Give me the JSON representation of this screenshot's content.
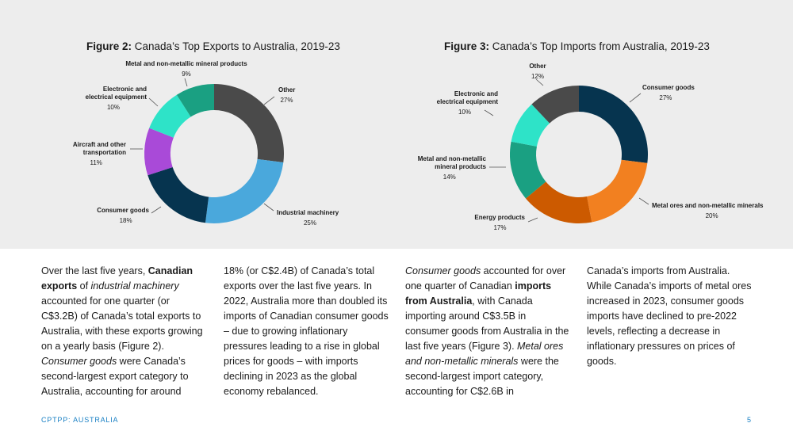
{
  "figures": {
    "exports": {
      "label": "Figure 2:",
      "title": " Canada’s Top Exports to Australia, 2019-23"
    },
    "imports": {
      "label": "Figure 3:",
      "title": " Canada’s Top Imports from Australia, 2019-23"
    }
  },
  "colors": {
    "dark_grey": "#4a4a4a",
    "light_blue": "#4aa8dc",
    "navy": "#06344f",
    "purple": "#a94ad8",
    "cyan": "#2ee3c8",
    "teal": "#1aa082",
    "orange": "#f28020",
    "dark_orange": "#cc5a00",
    "band": "#ededed",
    "footer": "#1a80c4"
  },
  "chart_data": [
    {
      "type": "pie",
      "donut": true,
      "title": "Canada’s Top Exports to Australia, 2019-23",
      "categories": [
        "Other",
        "Industrial machinery",
        "Consumer goods",
        "Aircraft and other transportation",
        "Electronic and electrical equipment",
        "Metal and non-metallic mineral products"
      ],
      "values": [
        27,
        25,
        18,
        11,
        10,
        9
      ],
      "value_labels": [
        "27%",
        "25%",
        "18%",
        "11%",
        "10%",
        "9%"
      ],
      "label_lines": [
        [
          "Other"
        ],
        [
          "Industrial machinery"
        ],
        [
          "Consumer goods"
        ],
        [
          "Aircraft and other",
          "transportation"
        ],
        [
          "Electronic and",
          "electrical equipment"
        ],
        [
          "Metal and non-metallic mineral products"
        ]
      ],
      "colors": [
        "#4a4a4a",
        "#4aa8dc",
        "#06344f",
        "#a94ad8",
        "#2ee3c8",
        "#1aa082"
      ],
      "unit": "%"
    },
    {
      "type": "pie",
      "donut": true,
      "title": "Canada’s Top Imports from Australia, 2019-23",
      "categories": [
        "Consumer goods",
        "Metal ores and non-metallic minerals",
        "Energy products",
        "Metal and non-metallic mineral products",
        "Electronic and electrical equipment",
        "Other"
      ],
      "values": [
        27,
        20,
        17,
        14,
        10,
        12
      ],
      "value_labels": [
        "27%",
        "20%",
        "17%",
        "14%",
        "10%",
        "12%"
      ],
      "label_lines": [
        [
          "Consumer goods"
        ],
        [
          "Metal ores and non-metallic minerals"
        ],
        [
          "Energy products"
        ],
        [
          "Metal and non-metallic",
          "mineral products"
        ],
        [
          "Electronic and",
          "electrical equipment"
        ],
        [
          "Other"
        ]
      ],
      "colors": [
        "#06344f",
        "#f28020",
        "#cc5a00",
        "#1aa082",
        "#2ee3c8",
        "#4a4a4a"
      ],
      "unit": "%"
    }
  ],
  "columns": [
    [
      {
        "t": "Over the last five years, "
      },
      {
        "t": "Canadian exports",
        "s": "b"
      },
      {
        "t": " of "
      },
      {
        "t": "industrial machinery",
        "s": "i"
      },
      {
        "t": " accounted for one quarter (or C$3.2B) of Canada’s total exports to Australia, with these exports growing on a yearly basis (Figure 2). "
      },
      {
        "t": "Consumer goods",
        "s": "i"
      },
      {
        "t": " were Canada’s second-largest export category to Australia, accounting for around"
      }
    ],
    [
      {
        "t": "18% (or C$2.4B) of Canada’s total exports over the last five years. In 2022, Australia more than doubled its imports of Canadian consumer goods – due to growing inflationary pressures leading to a rise in global prices for goods – with imports declining in 2023 as the global economy rebalanced."
      }
    ],
    [
      {
        "t": "Consumer goods",
        "s": "i"
      },
      {
        "t": " accounted for over one quarter of Canadian "
      },
      {
        "t": "imports from Australia",
        "s": "b"
      },
      {
        "t": ", with Canada importing around C$3.5B in consumer goods from Australia in the last five years (Figure 3). "
      },
      {
        "t": "Metal ores and non-metallic minerals",
        "s": "i"
      },
      {
        "t": " were the second-largest import category, accounting for C$2.6B in"
      }
    ],
    [
      {
        "t": "Canada’s imports from Australia. While Canada’s imports of metal ores increased in 2023, consumer goods imports have declined to pre-2022 levels, reflecting a decrease in inflationary pressures on prices of goods."
      }
    ]
  ],
  "footer": {
    "left": "CPTPP: AUSTRALIA",
    "page_number": "5"
  }
}
